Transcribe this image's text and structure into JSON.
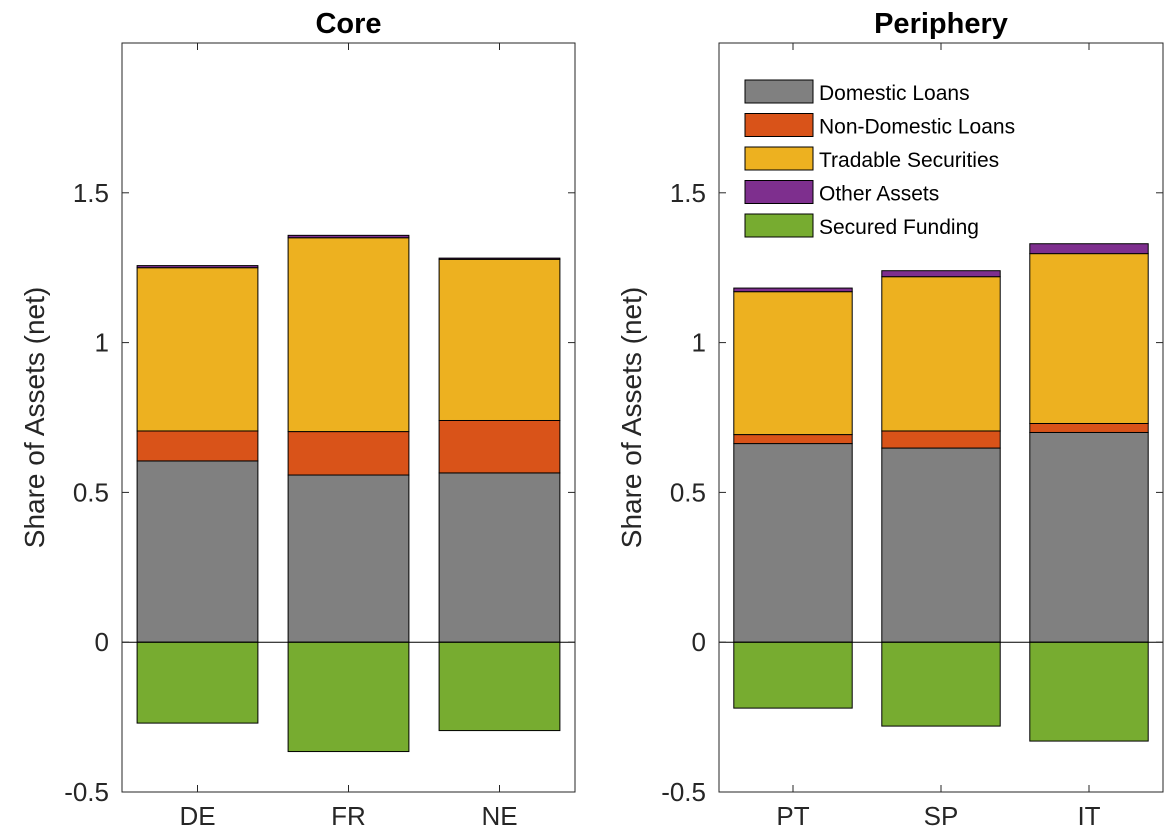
{
  "chart_data": [
    {
      "type": "bar",
      "stacked": true,
      "title": "Core",
      "ylabel": "Share of Assets (net)",
      "xlabel": "",
      "categories": [
        "DE",
        "FR",
        "NE"
      ],
      "ylim": [
        -0.5,
        2.0
      ],
      "yticks": [
        -0.5,
        0,
        0.5,
        1,
        1.5
      ],
      "ytick_labels": [
        "-0.5",
        "0",
        "0.5",
        "1",
        "1.5"
      ],
      "zero_line": true,
      "grid": false,
      "legend": null,
      "series": [
        {
          "name": "Domestic Loans",
          "color": "#808080",
          "values": [
            0.605,
            0.558,
            0.565
          ]
        },
        {
          "name": "Non-Domestic Loans",
          "color": "#D95319",
          "values": [
            0.1,
            0.145,
            0.175
          ]
        },
        {
          "name": "Tradable Securities",
          "color": "#EDB120",
          "values": [
            0.545,
            0.647,
            0.538
          ]
        },
        {
          "name": "Other Assets",
          "color": "#7E2F8E",
          "values": [
            0.007,
            0.008,
            0.004
          ]
        },
        {
          "name": "Secured Funding",
          "color": "#77AC30",
          "values": [
            -0.27,
            -0.365,
            -0.295
          ]
        }
      ]
    },
    {
      "type": "bar",
      "stacked": true,
      "title": "Periphery",
      "ylabel": "Share of Assets (net)",
      "xlabel": "",
      "categories": [
        "PT",
        "SP",
        "IT"
      ],
      "ylim": [
        -0.5,
        2.0
      ],
      "yticks": [
        -0.5,
        0,
        0.5,
        1,
        1.5
      ],
      "ytick_labels": [
        "-0.5",
        "0",
        "0.5",
        "1",
        "1.5"
      ],
      "zero_line": true,
      "grid": false,
      "legend": "top-left",
      "series": [
        {
          "name": "Domestic Loans",
          "color": "#808080",
          "values": [
            0.663,
            0.648,
            0.7
          ]
        },
        {
          "name": "Non-Domestic Loans",
          "color": "#D95319",
          "values": [
            0.03,
            0.057,
            0.03
          ]
        },
        {
          "name": "Tradable Securities",
          "color": "#EDB120",
          "values": [
            0.477,
            0.515,
            0.567
          ]
        },
        {
          "name": "Other Assets",
          "color": "#7E2F8E",
          "values": [
            0.012,
            0.02,
            0.033
          ]
        },
        {
          "name": "Secured Funding",
          "color": "#77AC30",
          "values": [
            -0.22,
            -0.28,
            -0.33
          ]
        }
      ]
    }
  ]
}
